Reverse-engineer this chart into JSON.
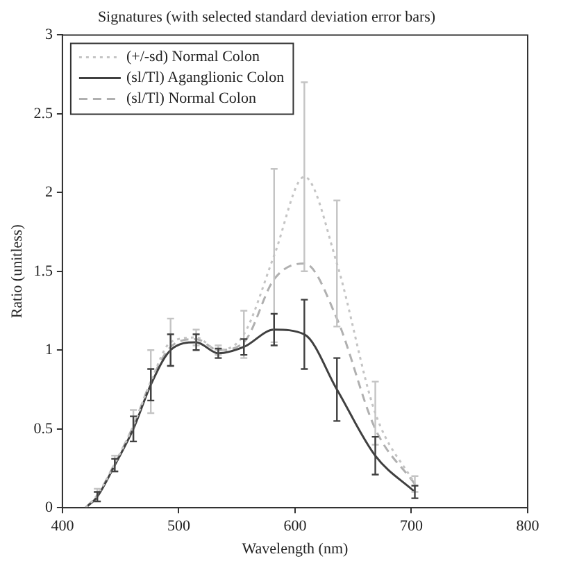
{
  "chart_data": {
    "type": "line",
    "title": "Signatures (with selected standard deviation error bars)",
    "xlabel": "Wavelength (nm)",
    "ylabel": "Ratio (unitless)",
    "x": [
      420,
      430,
      445,
      461,
      476,
      493,
      515,
      534,
      556,
      582,
      608,
      636,
      669,
      703
    ],
    "xlim": [
      400,
      800
    ],
    "xticks": [
      400,
      500,
      600,
      700,
      800
    ],
    "ylim": [
      0,
      3
    ],
    "yticks": [
      0,
      0.5,
      1,
      1.5,
      2,
      2.5,
      3
    ],
    "grid": false,
    "legend": "top left",
    "marker": "none",
    "series": [
      {
        "name": "(+/-sd) Normal Colon",
        "color": "#c4c4c4",
        "line_style": "dotted",
        "values": [
          0,
          0.08,
          0.28,
          0.52,
          0.8,
          1.05,
          1.08,
          1.0,
          1.1,
          1.6,
          2.1,
          1.55,
          0.6,
          0.15
        ],
        "errors": [
          null,
          0.04,
          0.05,
          0.1,
          0.2,
          0.15,
          0.05,
          0.03,
          0.15,
          0.55,
          0.6,
          0.4,
          0.2,
          0.05
        ]
      },
      {
        "name": "(sl/Tl) Aganglionic Colon",
        "color": "#404040",
        "line_style": "solid",
        "values": [
          0,
          0.07,
          0.27,
          0.5,
          0.78,
          1.0,
          1.05,
          0.98,
          1.02,
          1.13,
          1.1,
          0.75,
          0.33,
          0.1
        ],
        "errors": [
          null,
          0.03,
          0.04,
          0.08,
          0.1,
          0.1,
          0.05,
          0.03,
          0.05,
          0.1,
          0.22,
          0.2,
          0.12,
          0.04
        ]
      },
      {
        "name": "(sl/Tl) Normal Colon",
        "color": "#b0b0b0",
        "line_style": "dashed",
        "values": [
          0,
          0.08,
          0.28,
          0.52,
          0.8,
          1.02,
          1.07,
          1.0,
          1.05,
          1.45,
          1.55,
          1.2,
          0.5,
          0.15
        ]
      }
    ]
  }
}
